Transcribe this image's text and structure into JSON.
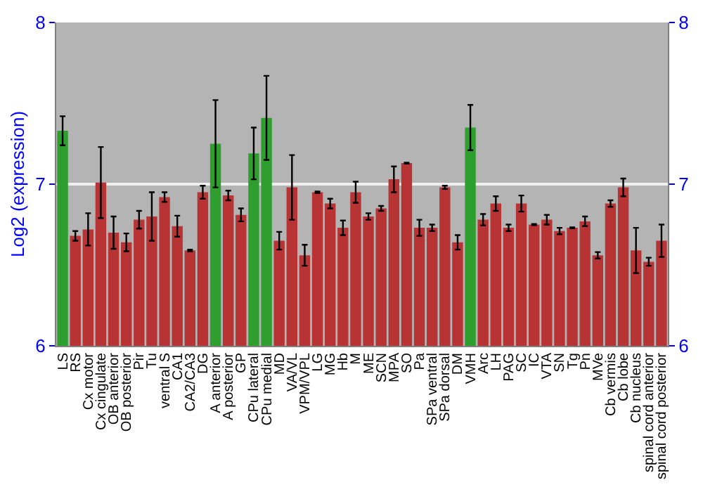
{
  "chart_data": {
    "type": "bar",
    "ylabel": "Log2 (expression)",
    "categories": [
      "LS",
      "RS",
      "Cx motor",
      "Cx cingulate",
      "OB anterior",
      "OB posterior",
      "Pir",
      "Tu",
      "ventral S",
      "CA1",
      "CA2/CA3",
      "DG",
      "A anterior",
      "A posterior",
      "GP",
      "CPu lateral",
      "CPu medial",
      "MD",
      "VA/VL",
      "VPM/VPL",
      "LG",
      "MG",
      "Hb",
      "M",
      "ME",
      "SCN",
      "MPA",
      "SO",
      "Pa",
      "SPa ventral",
      "SPa dorsal",
      "DM",
      "VMH",
      "Arc",
      "LH",
      "PAG",
      "SC",
      "IC",
      "VTA",
      "SN",
      "Tg",
      "Pn",
      "MVe",
      "Cb vermis",
      "Cb lobe",
      "Cb nucleus",
      "spinal cord anterior",
      "spinal cord posterior"
    ],
    "values": [
      7.33,
      6.68,
      6.72,
      7.01,
      6.7,
      6.64,
      6.78,
      6.8,
      6.92,
      6.74,
      6.59,
      6.95,
      7.25,
      6.93,
      6.81,
      7.19,
      7.41,
      6.65,
      6.98,
      6.56,
      6.95,
      6.88,
      6.73,
      6.95,
      6.8,
      6.85,
      7.03,
      7.13,
      6.73,
      6.73,
      6.98,
      6.64,
      7.35,
      6.78,
      6.88,
      6.73,
      6.88,
      6.75,
      6.78,
      6.71,
      6.73,
      6.77,
      6.56,
      6.88,
      6.98,
      6.59,
      6.52,
      6.65
    ],
    "errors": [
      0.09,
      0.03,
      0.1,
      0.22,
      0.1,
      0.055,
      0.055,
      0.15,
      0.03,
      0.065,
      0.005,
      0.04,
      0.27,
      0.03,
      0.04,
      0.16,
      0.26,
      0.055,
      0.2,
      0.065,
      0.005,
      0.03,
      0.045,
      0.065,
      0.02,
      0.015,
      0.08,
      0.003,
      0.05,
      0.02,
      0.01,
      0.045,
      0.14,
      0.035,
      0.045,
      0.02,
      0.05,
      0.003,
      0.03,
      0.02,
      0.003,
      0.03,
      0.02,
      0.02,
      0.055,
      0.14,
      0.025,
      0.1
    ],
    "colors": [
      "#2e9e2e",
      "#b83434",
      "#b83434",
      "#b83434",
      "#b83434",
      "#b83434",
      "#b83434",
      "#b83434",
      "#b83434",
      "#b83434",
      "#b83434",
      "#b83434",
      "#2e9e2e",
      "#b83434",
      "#b83434",
      "#2e9e2e",
      "#2e9e2e",
      "#b83434",
      "#b83434",
      "#b83434",
      "#b83434",
      "#b83434",
      "#b83434",
      "#b83434",
      "#b83434",
      "#b83434",
      "#b83434",
      "#b83434",
      "#b83434",
      "#b83434",
      "#b83434",
      "#b83434",
      "#2e9e2e",
      "#b83434",
      "#b83434",
      "#b83434",
      "#b83434",
      "#b83434",
      "#b83434",
      "#b83434",
      "#b83434",
      "#b83434",
      "#b83434",
      "#b83434",
      "#b83434",
      "#b83434",
      "#b83434",
      "#b83434"
    ],
    "ylim": [
      6,
      8
    ],
    "yticks": [
      6,
      7,
      8
    ],
    "y2lim": [
      6,
      8
    ],
    "y2ticks": [
      6,
      7,
      8
    ],
    "grid": "y"
  }
}
